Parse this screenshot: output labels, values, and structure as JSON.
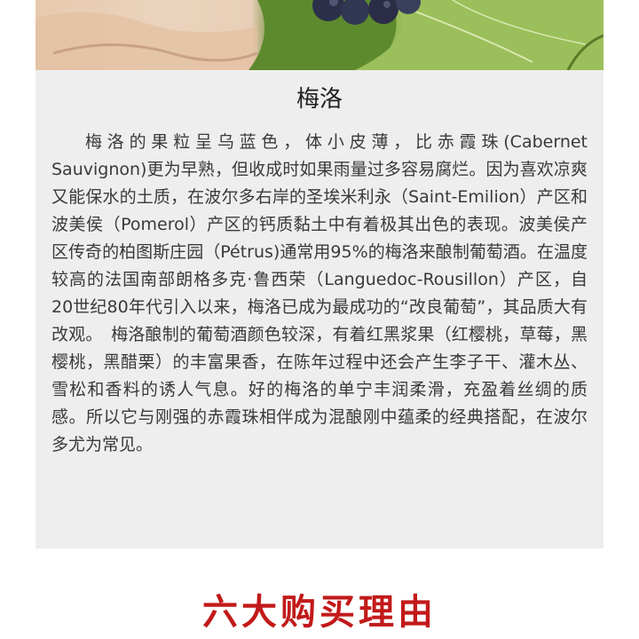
{
  "section": {
    "title": "梅洛",
    "paragraph": "梅洛的果粒呈乌蓝色，体小皮薄，比赤霞珠(Cabernet Sauvignon)更为早熟，但收成时如果雨量过多容易腐烂。因为喜欢凉爽又能保水的土质，在波尔多右岸的圣埃米利永（Saint-Emilion）产区和波美侯（Pomerol）产区的钙质黏土中有着极其出色的表现。波美侯产区传奇的柏图斯庄园（Pétrus)通常用95%的梅洛来酿制葡萄酒。在温度较高的法国南部朗格多克·鲁西荣（Languedoc-Rousillon）产区，自20世纪80年代引入以来，梅洛已成为最成功的“改良葡萄”，其品质大有改观。　梅洛酿制的葡萄酒颜色较深，有着红黑浆果（红樱桃，草莓，黑樱桃，黑醋栗）的丰富果香，在陈年过程中还会产生李子干、灌木丛、雪松和香料的诱人气息。好的梅洛的单宁丰润柔滑，充盈着丝绸的质感。所以它与刚强的赤霞珠相伴成为混酿刚中蕴柔的经典搭配，在波尔多尤为常见。"
  },
  "footer": {
    "heading": "六大购买理由"
  },
  "colors": {
    "panel_bg": "#eeeeee",
    "heading_red": "#c21a1a",
    "text": "#3a3a3a"
  }
}
